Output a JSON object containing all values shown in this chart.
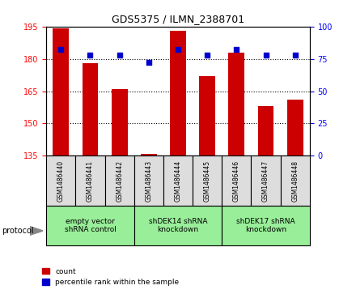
{
  "title": "GDS5375 / ILMN_2388701",
  "samples": [
    "GSM1486440",
    "GSM1486441",
    "GSM1486442",
    "GSM1486443",
    "GSM1486444",
    "GSM1486445",
    "GSM1486446",
    "GSM1486447",
    "GSM1486448"
  ],
  "counts": [
    194,
    178,
    166,
    136,
    193,
    172,
    183,
    158,
    161
  ],
  "percentile_ranks": [
    82,
    78,
    78,
    72,
    82,
    78,
    82,
    78,
    78
  ],
  "ylim_left": [
    135,
    195
  ],
  "ylim_right": [
    0,
    100
  ],
  "yticks_left": [
    135,
    150,
    165,
    180,
    195
  ],
  "yticks_right": [
    0,
    25,
    50,
    75,
    100
  ],
  "bar_color": "#cc0000",
  "dot_color": "#0000cc",
  "bar_width": 0.55,
  "groups": [
    {
      "label": "empty vector\nshRNA control",
      "start": 0,
      "end": 3,
      "color": "#99ee99"
    },
    {
      "label": "shDEK14 shRNA\nknockdown",
      "start": 3,
      "end": 6,
      "color": "#99ee99"
    },
    {
      "label": "shDEK17 shRNA\nknockdown",
      "start": 6,
      "end": 9,
      "color": "#99ee99"
    }
  ],
  "protocol_label": "protocol",
  "legend_count_label": "count",
  "legend_pct_label": "percentile rank within the sample",
  "plot_bg": "#ffffff",
  "sample_bg": "#dddddd"
}
